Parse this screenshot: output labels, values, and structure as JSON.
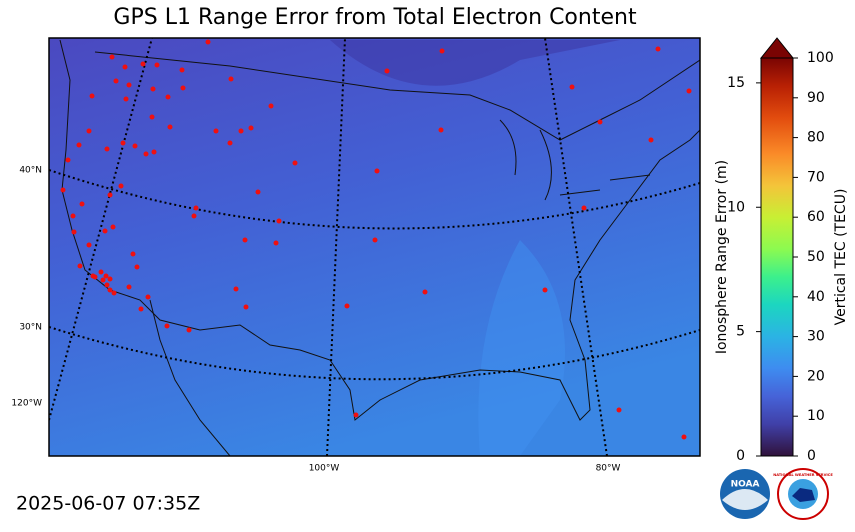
{
  "title": "GPS L1 Range Error from Total Electron Content",
  "timestamp": "2025-06-07 07:35Z",
  "map_labels": {
    "lat": [
      "40°N",
      "30°N"
    ],
    "lon": [
      "120°W",
      "100°W",
      "80°W"
    ]
  },
  "colorbar": {
    "left_label": "Ionosphere Range Error (m)",
    "left_lim": [
      0,
      16
    ],
    "left_ticks": [
      0,
      5,
      10,
      15
    ],
    "right_label": "Vertical TEC (TECU)",
    "right_lim": [
      0,
      100
    ],
    "right_ticks": [
      0,
      10,
      20,
      30,
      40,
      50,
      60,
      70,
      80,
      90,
      100
    ]
  },
  "logos": {
    "noaa": "NOAA",
    "nws": "NATIONAL WEATHER SERVICE"
  }
}
